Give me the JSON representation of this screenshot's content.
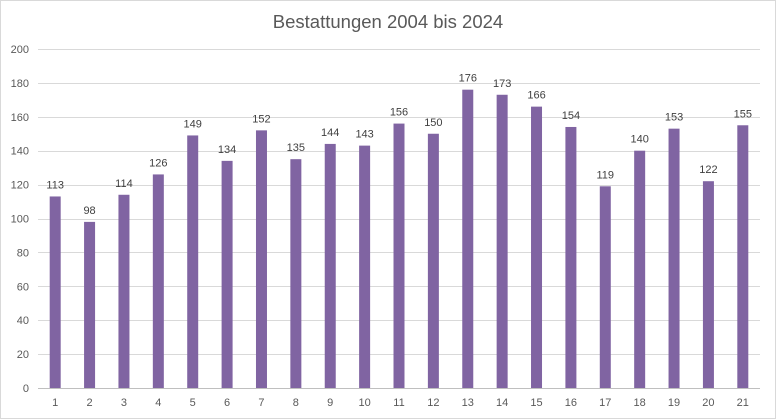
{
  "chart_data": {
    "type": "bar",
    "title": "Bestattungen 2004 bis 2024",
    "categories": [
      "1",
      "2",
      "3",
      "4",
      "5",
      "6",
      "7",
      "8",
      "9",
      "10",
      "11",
      "12",
      "13",
      "14",
      "15",
      "16",
      "17",
      "18",
      "19",
      "20",
      "21"
    ],
    "values": [
      113,
      98,
      114,
      126,
      149,
      134,
      152,
      135,
      144,
      143,
      156,
      150,
      176,
      173,
      166,
      154,
      119,
      140,
      153,
      122,
      155
    ],
    "ylim": [
      0,
      200
    ],
    "yticks": [
      0,
      20,
      40,
      60,
      80,
      100,
      120,
      140,
      160,
      180,
      200
    ],
    "grid": true,
    "legend": "none",
    "data_labels": true,
    "bar_color": "#8064a2"
  }
}
